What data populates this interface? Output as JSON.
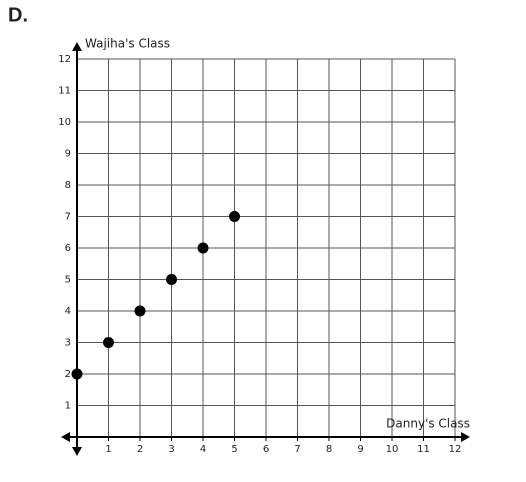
{
  "label": "D.",
  "chart_data": {
    "type": "scatter",
    "x_label": "Danny's Class",
    "y_label": "Wajiha's Class",
    "x": [
      0,
      1,
      2,
      3,
      4,
      5
    ],
    "values": [
      2,
      3,
      4,
      5,
      6,
      7
    ],
    "color": "#000000",
    "xlim": [
      0,
      12
    ],
    "ylim": [
      0,
      12
    ],
    "xticks": [
      1,
      2,
      3,
      4,
      5,
      6,
      7,
      8,
      9,
      10,
      11,
      12
    ],
    "yticks": [
      1,
      2,
      3,
      4,
      5,
      6,
      7,
      8,
      9,
      10,
      11,
      12
    ],
    "grid": true
  }
}
